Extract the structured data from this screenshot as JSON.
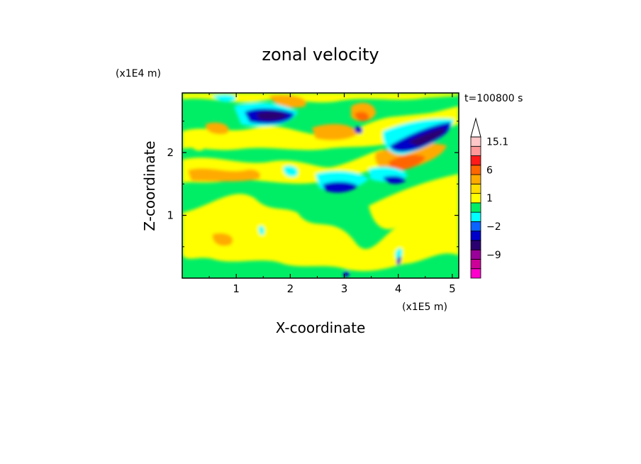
{
  "chart_data": {
    "type": "heatmap",
    "title": "zonal velocity",
    "time_label": "t=100800 s",
    "xlabel": "X-coordinate",
    "ylabel": "Z-coordinate",
    "x_scale_label": "(x1E5 m)",
    "y_scale_label": "(x1E4 m)",
    "xlim": [
      0,
      5.12
    ],
    "ylim": [
      0,
      2.95
    ],
    "xticks": [
      1,
      2,
      3,
      4,
      5
    ],
    "yticks": [
      1,
      2
    ],
    "colorbar": {
      "levels": [
        -15,
        -12,
        -9,
        -6,
        -3,
        -2,
        -1,
        0,
        1,
        2,
        3,
        6,
        9,
        12,
        15.1
      ],
      "tick_labels": [
        {
          "value": 15.1,
          "label": "15.1"
        },
        {
          "value": 6,
          "label": "6"
        },
        {
          "value": 1,
          "label": "1"
        },
        {
          "value": -2,
          "label": "−2"
        },
        {
          "value": -9,
          "label": "−9"
        }
      ],
      "colors": [
        "#ff00cc",
        "#cc0099",
        "#990099",
        "#2a0070",
        "#0000c8",
        "#0a64ff",
        "#00ffff",
        "#00ee66",
        "#ffff00",
        "#ffdd00",
        "#ffaa00",
        "#ff6600",
        "#ff1a1a",
        "#ff9999",
        "#ffc8c8"
      ]
    }
  },
  "colors": {
    "c_neg_mid": "#0000c8",
    "c_neg_deep": "#2a0070",
    "c_neg_small": "#00ffff",
    "c_zero": "#00ee66",
    "c_pos_small": "#ffff00",
    "c_pos": "#ffaa00",
    "c_pos_high": "#ff6600",
    "c_pos_max": "#ff1a1a"
  }
}
